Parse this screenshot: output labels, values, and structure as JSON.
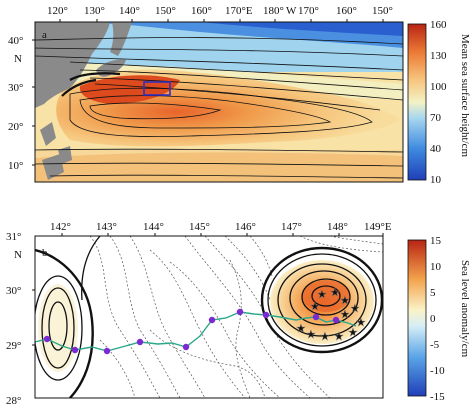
{
  "panel_a": {
    "letter": "a",
    "x_ticks": [
      "120°",
      "130°",
      "140°",
      "150°",
      "160°",
      "170°E",
      "180°",
      "W",
      "170°",
      "160°",
      "150°"
    ],
    "y_ticks": [
      "40°",
      "30°",
      "20°",
      "10°"
    ],
    "y_unit": "N",
    "colorbar_ticks": [
      "160",
      "130",
      "100",
      "70",
      "40",
      "10"
    ],
    "colorbar_label": "Mean sea surface height/cm",
    "colors": {
      "low": "#2a5fd0",
      "mid": "#f4f1b8",
      "high": "#c83018",
      "land": "#8a8a8a",
      "box": "#3030c0"
    }
  },
  "panel_b": {
    "letter": "b",
    "x_ticks": [
      "142°",
      "143°",
      "144°",
      "145°",
      "146°",
      "147°",
      "148°",
      "149°E"
    ],
    "y_ticks": [
      "31°",
      "30°",
      "29°",
      "28°"
    ],
    "y_unit": "N",
    "colorbar_ticks": [
      "15",
      "10",
      "5",
      "0",
      "-5",
      "-10",
      "-15"
    ],
    "colorbar_label": "Sea level anomaly/cm",
    "colors": {
      "track": "#2aa88a",
      "dot": "#7a2ad0",
      "star": "#909090"
    }
  }
}
